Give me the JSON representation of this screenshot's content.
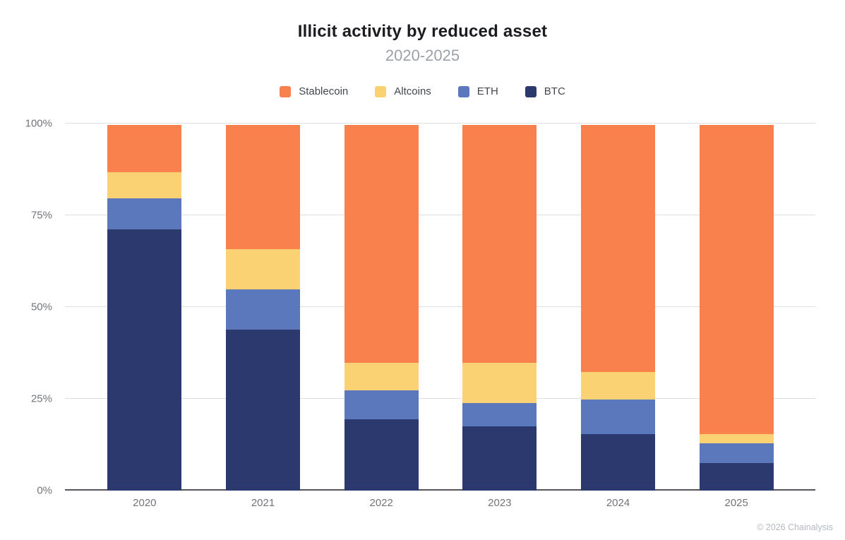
{
  "header": {
    "title": "Illicit activity by reduced asset",
    "subtitle": "2020-2025"
  },
  "legend": {
    "items": [
      {
        "label": "Stablecoin",
        "color": "#F8814E"
      },
      {
        "label": "Altcoins",
        "color": "#FAD173"
      },
      {
        "label": "ETH",
        "color": "#5C78BD"
      },
      {
        "label": "BTC",
        "color": "#2B396E"
      }
    ]
  },
  "chart_data": {
    "type": "bar",
    "stacked": true,
    "normalized": true,
    "units": "percent",
    "title": "Illicit activity by reduced asset",
    "subtitle": "2020-2025",
    "categories": [
      "2020",
      "2021",
      "2022",
      "2023",
      "2024",
      "2025"
    ],
    "series": [
      {
        "name": "BTC",
        "color": "#2B396E",
        "values": [
          71.5,
          44.0,
          19.5,
          17.5,
          15.5,
          7.5
        ]
      },
      {
        "name": "ETH",
        "color": "#5C78BD",
        "values": [
          8.5,
          11.0,
          8.0,
          6.5,
          9.5,
          5.5
        ]
      },
      {
        "name": "Altcoins",
        "color": "#FAD173",
        "values": [
          7.0,
          11.0,
          7.5,
          11.0,
          7.5,
          2.5
        ]
      },
      {
        "name": "Stablecoin",
        "color": "#F8814E",
        "values": [
          13.0,
          34.0,
          65.0,
          65.0,
          67.5,
          84.5
        ]
      }
    ],
    "stacking_order": "bottom-to-top",
    "yticks": [
      0,
      25,
      50,
      75,
      100
    ],
    "ytick_labels": [
      "0%",
      "25%",
      "50%",
      "75%",
      "100%"
    ],
    "ylim": [
      0,
      100
    ],
    "grid": "horizontal",
    "legend_position": "top",
    "colors": {
      "gridline": "#dedede",
      "axis_line": "#55575b",
      "tick_label": "#717479",
      "title": "#1b1c20",
      "subtitle": "#9ca1a8",
      "background": "#ffffff"
    }
  },
  "footer": {
    "copyright": "© 2026 Chainalysis"
  }
}
